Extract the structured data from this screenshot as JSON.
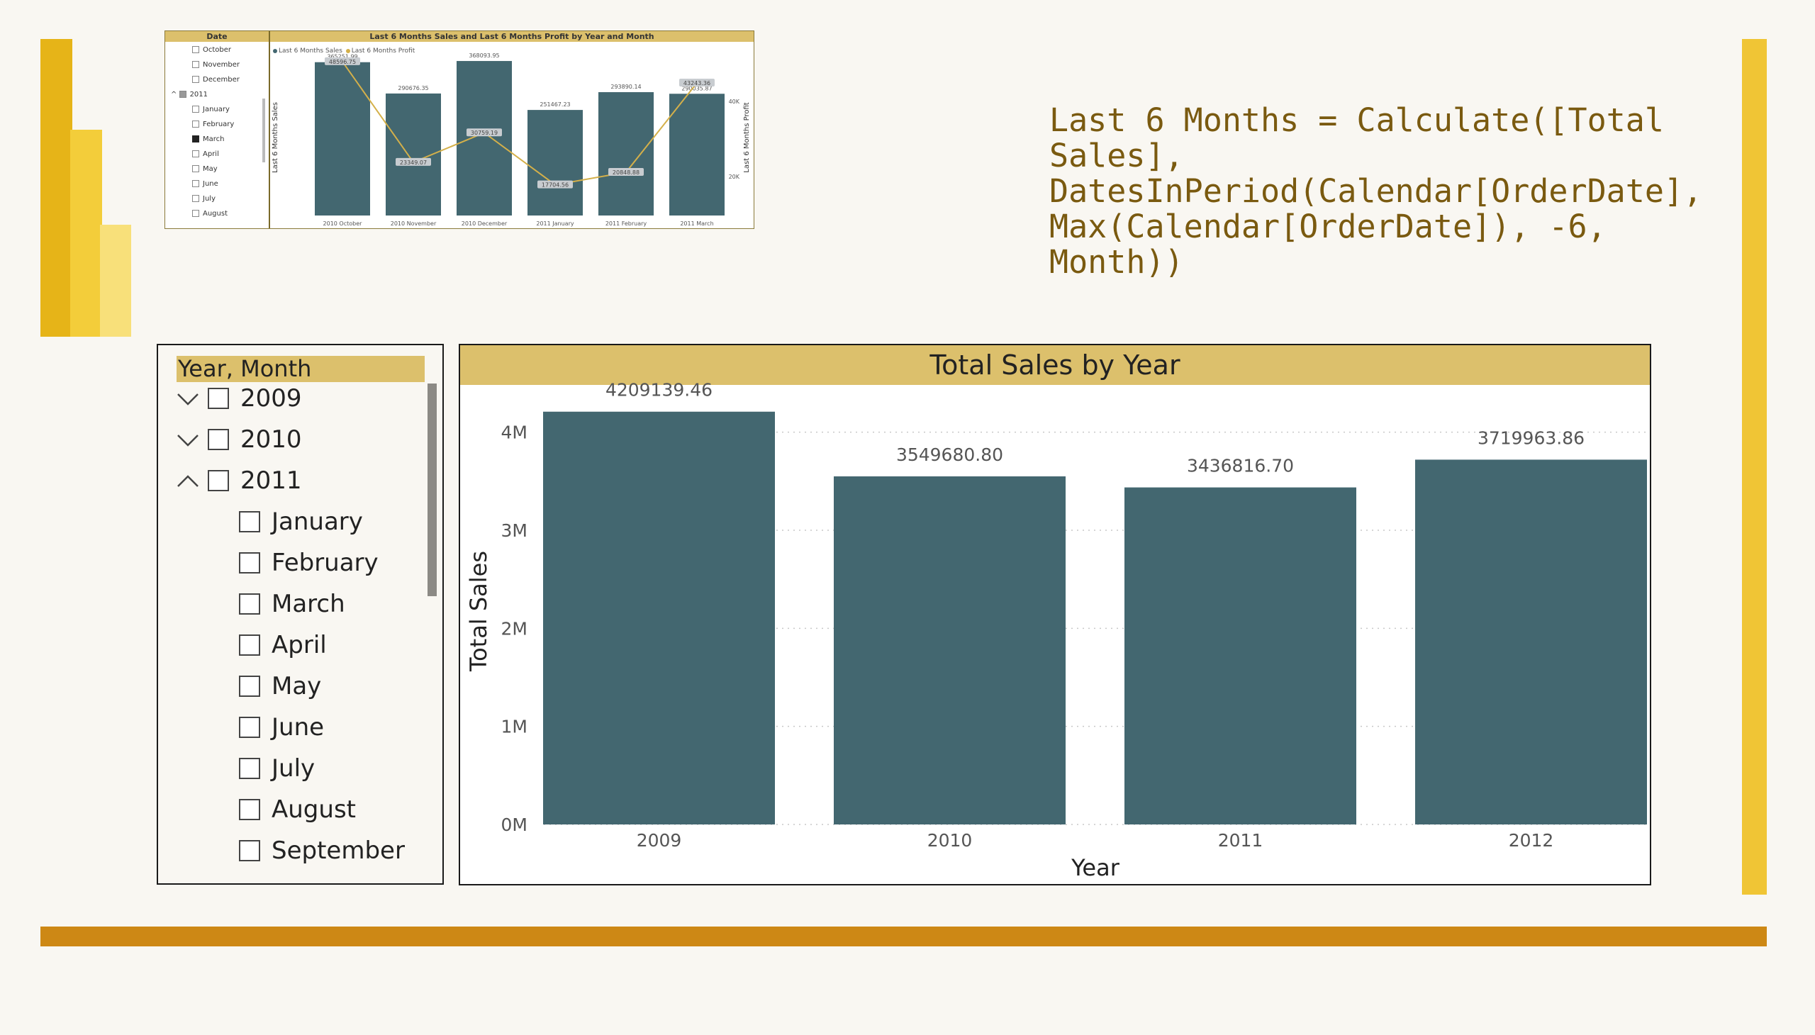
{
  "colors": {
    "accent": "#dcc06c",
    "bar": "#436770",
    "line": "#d4b04a",
    "orange": "#cd8815",
    "gold": "#f0c535",
    "formula_text": "#7a5a10"
  },
  "logo": {
    "icon": "power-bi-logo"
  },
  "thumbnail": {
    "slicer_header": "Date",
    "slicer_items": [
      {
        "label": "October",
        "checked": false
      },
      {
        "label": "November",
        "checked": false
      },
      {
        "label": "December",
        "checked": false
      },
      {
        "label": "2011",
        "checked": false,
        "partial": true
      },
      {
        "label": "January",
        "checked": false
      },
      {
        "label": "February",
        "checked": false
      },
      {
        "label": "March",
        "checked": true
      },
      {
        "label": "April",
        "checked": false
      },
      {
        "label": "May",
        "checked": false
      },
      {
        "label": "June",
        "checked": false
      },
      {
        "label": "July",
        "checked": false
      },
      {
        "label": "August",
        "checked": false
      }
    ],
    "chart_title": "Last 6 Months Sales and Last 6 Months Profit by Year and Month",
    "legend": [
      "Last 6 Months Sales",
      "Last 6 Months Profit"
    ],
    "y_left_label": "Last 6 Months Sales",
    "y_right_label": "Last 6 Months Profit",
    "y_right_ticks": [
      "40K",
      "20K"
    ]
  },
  "formula": "Last 6 Months = Calculate([Total Sales],\nDatesInPeriod(Calendar[OrderDate],\nMax(Calendar[OrderDate]), -6, Month))",
  "slicer": {
    "header": "Year, Month",
    "years": [
      {
        "label": "2009",
        "expanded": false
      },
      {
        "label": "2010",
        "expanded": false
      },
      {
        "label": "2011",
        "expanded": true
      }
    ],
    "months": [
      "January",
      "February",
      "March",
      "April",
      "May",
      "June",
      "July",
      "August",
      "September"
    ]
  },
  "chart_data": [
    {
      "type": "bar",
      "title": "Total Sales by Year",
      "xlabel": "Year",
      "ylabel": "Total Sales",
      "categories": [
        "2009",
        "2010",
        "2011",
        "2012"
      ],
      "values": [
        4209139.46,
        3549680.8,
        3436816.7,
        3719963.86
      ],
      "data_labels": [
        "4209139.46",
        "3549680.80",
        "3436816.70",
        "3719963.86"
      ],
      "ytick_labels": [
        "0M",
        "1M",
        "2M",
        "3M",
        "4M"
      ],
      "ylim": [
        0,
        4200000
      ],
      "grid": true
    },
    {
      "type": "bar",
      "title": "Last 6 Months Sales and Last 6 Months Profit by Year and Month",
      "categories": [
        "2010 October",
        "2010 November",
        "2010 December",
        "2011 January",
        "2011 February",
        "2011 March"
      ],
      "series": [
        {
          "name": "Last 6 Months Sales",
          "values": [
            365251.99,
            290676.35,
            368093.95,
            251467.23,
            293890.14,
            290035.87
          ],
          "labels": [
            "365251.99",
            "290676.35",
            "368093.95",
            "251467.23",
            "293890.14",
            "290035.87"
          ]
        },
        {
          "name": "Last 6 Months Profit",
          "values": [
            48596.75,
            23349.07,
            30759.19,
            17704.56,
            20848.88,
            43243.36
          ],
          "labels": [
            "48596.75",
            "23349.07",
            "30759.19",
            "17704.56",
            "20848.88",
            "43243.36"
          ]
        }
      ]
    }
  ]
}
